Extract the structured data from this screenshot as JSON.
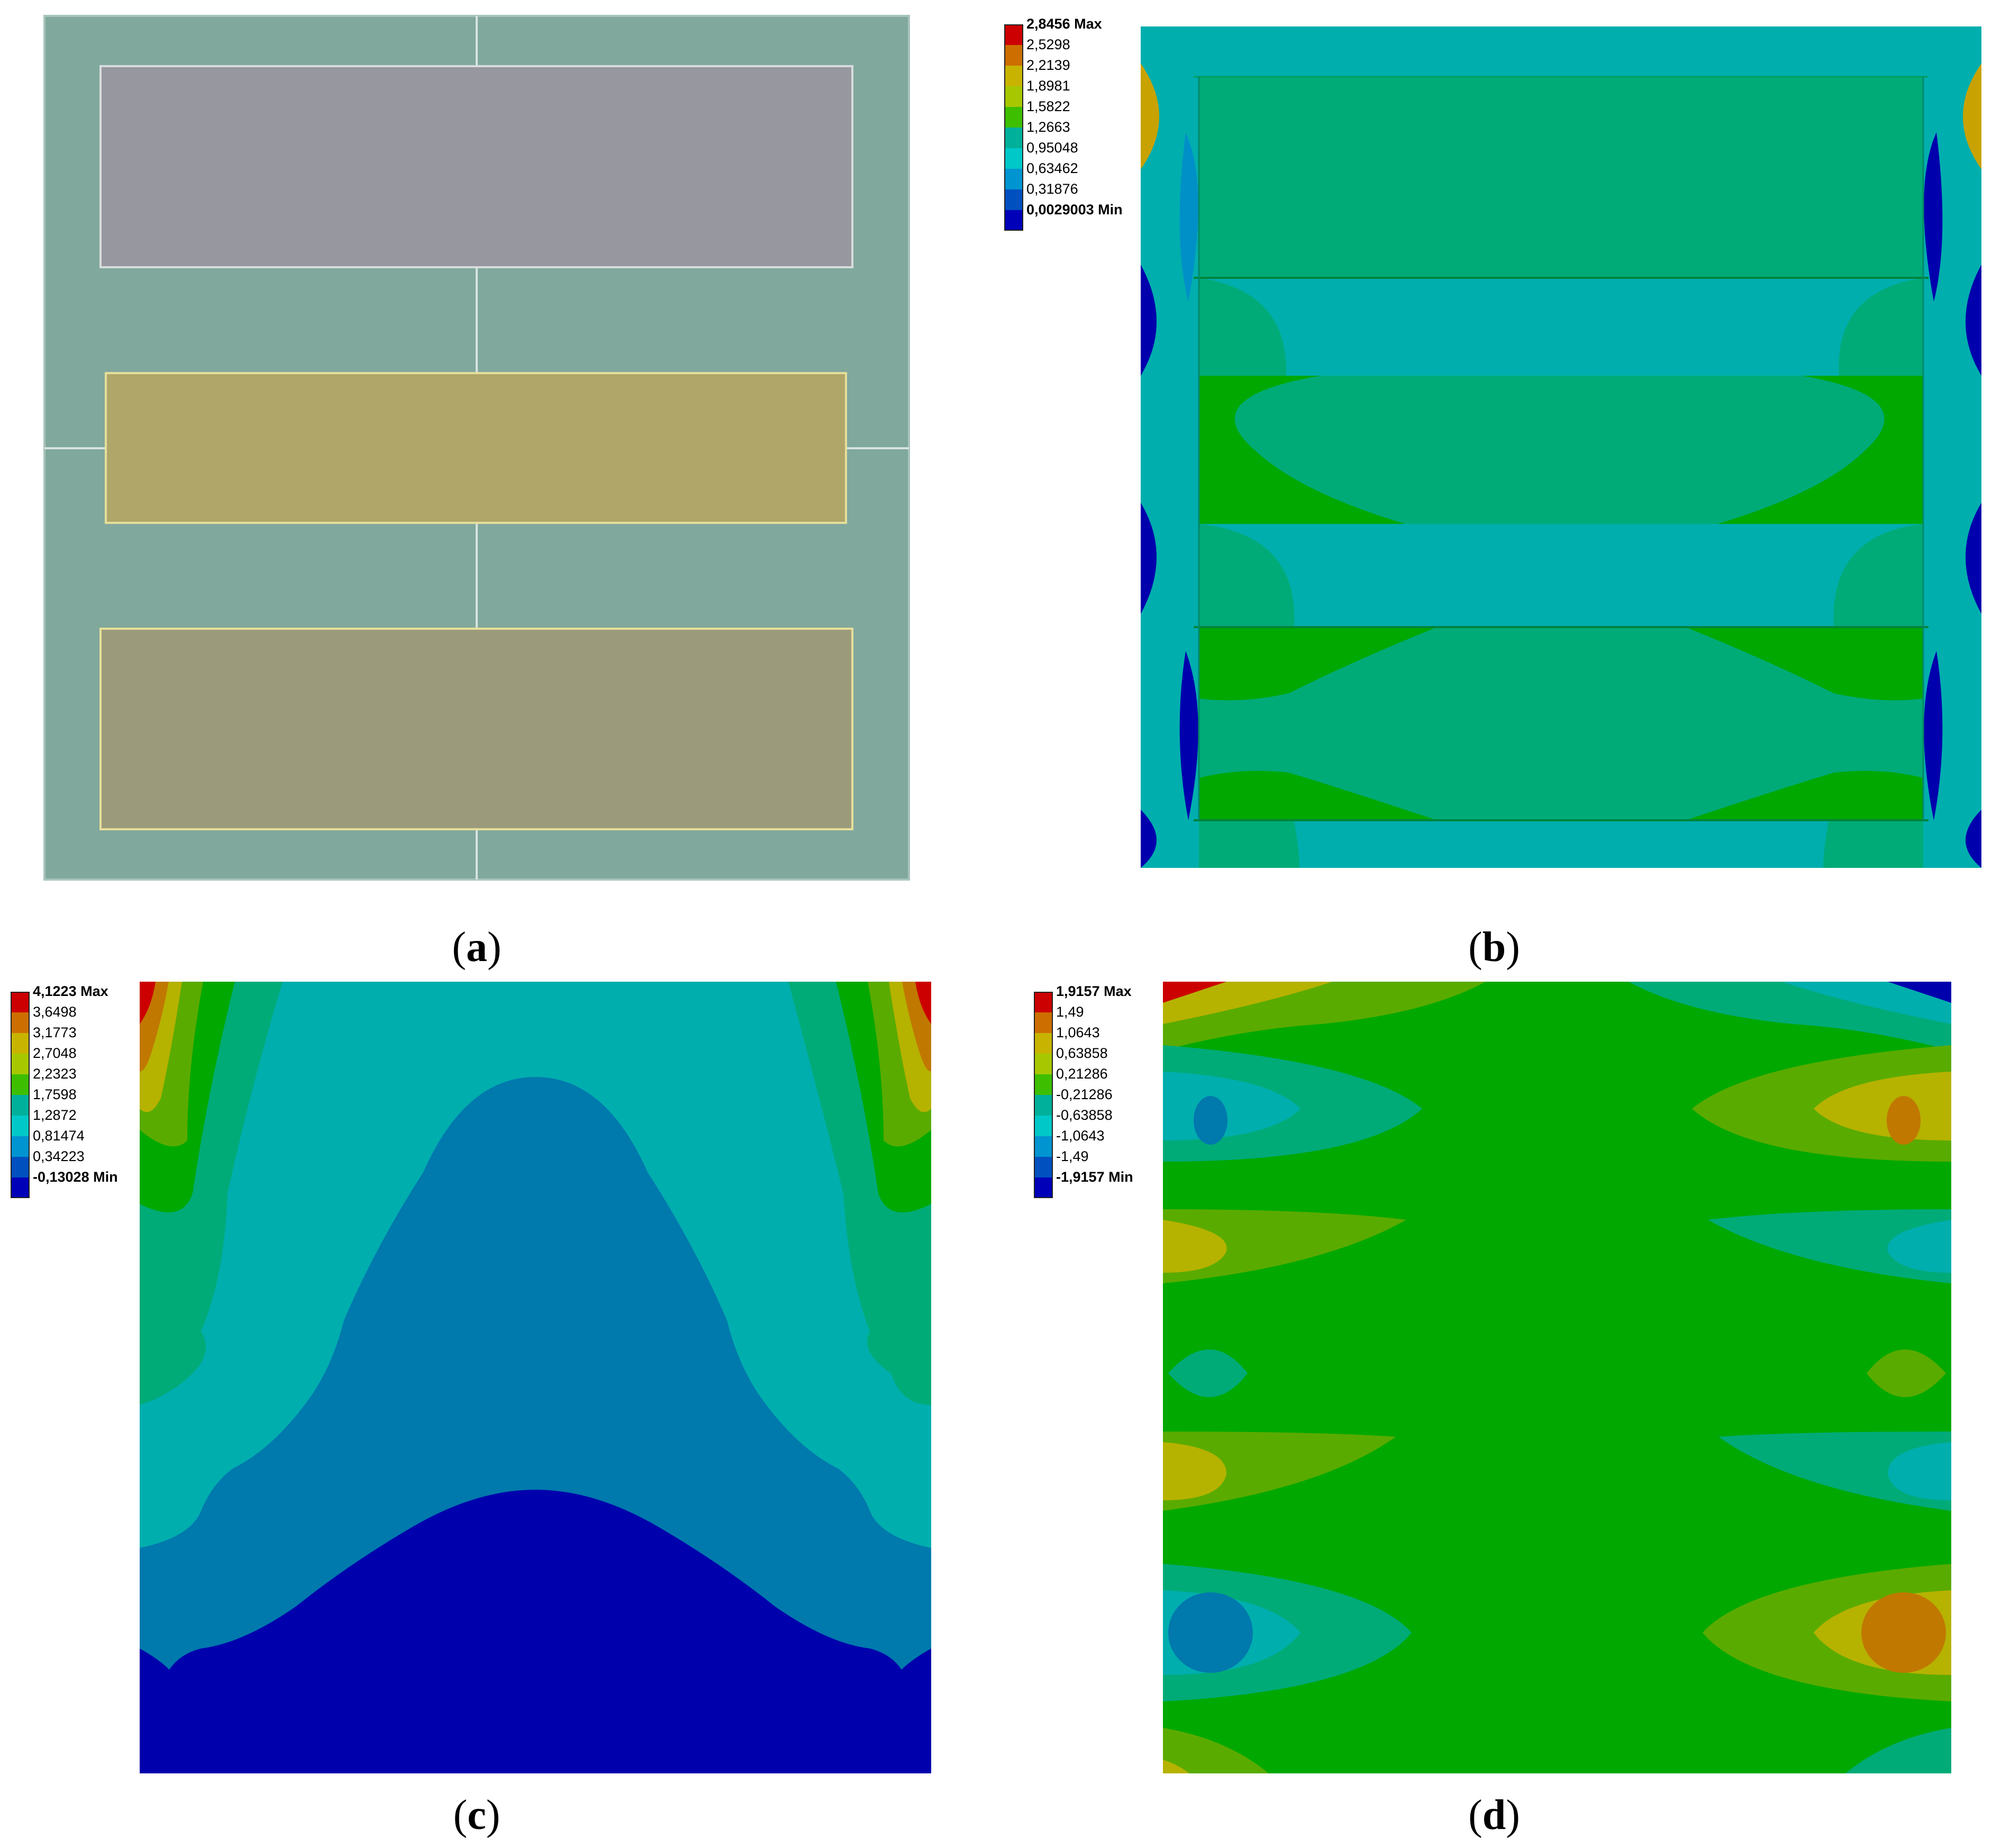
{
  "figure": {
    "panels": [
      {
        "id": "a",
        "caption": "a"
      },
      {
        "id": "b",
        "caption": "b"
      },
      {
        "id": "c",
        "caption": "c"
      },
      {
        "id": "d",
        "caption": "d"
      }
    ]
  },
  "legend_colors": [
    "#cc0000",
    "#cc6f00",
    "#c8b400",
    "#a7c800",
    "#3dbf00",
    "#00b09a",
    "#00c8c8",
    "#0094d0",
    "#0050c0",
    "#0000b8"
  ],
  "legends": {
    "b": {
      "max_label": "2,8456 Max",
      "min_label": "0,0029003 Min",
      "levels": [
        "2,5298",
        "2,2139",
        "1,8981",
        "1,5822",
        "1,2663",
        "0,95048",
        "0,63462",
        "0,31876"
      ]
    },
    "c": {
      "max_label": "4,1223 Max",
      "min_label": "-0,13028 Min",
      "levels": [
        "3,6498",
        "3,1773",
        "2,7048",
        "2,2323",
        "1,7598",
        "1,2872",
        "0,81474",
        "0,34223"
      ]
    },
    "d": {
      "max_label": "1,9157 Max",
      "min_label": "-1,9157 Min",
      "levels": [
        "1,49",
        "1,0643",
        "0,63858",
        "0,21286",
        "-0,21286",
        "-0,63858",
        "-1,0643",
        "-1,49"
      ]
    }
  },
  "colors": {
    "geometry_bg": "#80a89c",
    "geometry_lines": "#d8e4e0",
    "rect_top": "#9797a0",
    "rect_middle": "#b0a66a",
    "rect_bottom": "#9b9b7c",
    "rect_border": "#e6de9a",
    "contour_red": "#cc0000",
    "contour_orange": "#c07800",
    "contour_yellow": "#b6b200",
    "contour_yellowgreen": "#5aab00",
    "contour_green": "#00a800",
    "contour_emerald": "#00ab78",
    "contour_teal": "#00aeae",
    "contour_lightblue": "#0096d0",
    "contour_steel": "#0079ad",
    "contour_blue": "#0000ac"
  }
}
